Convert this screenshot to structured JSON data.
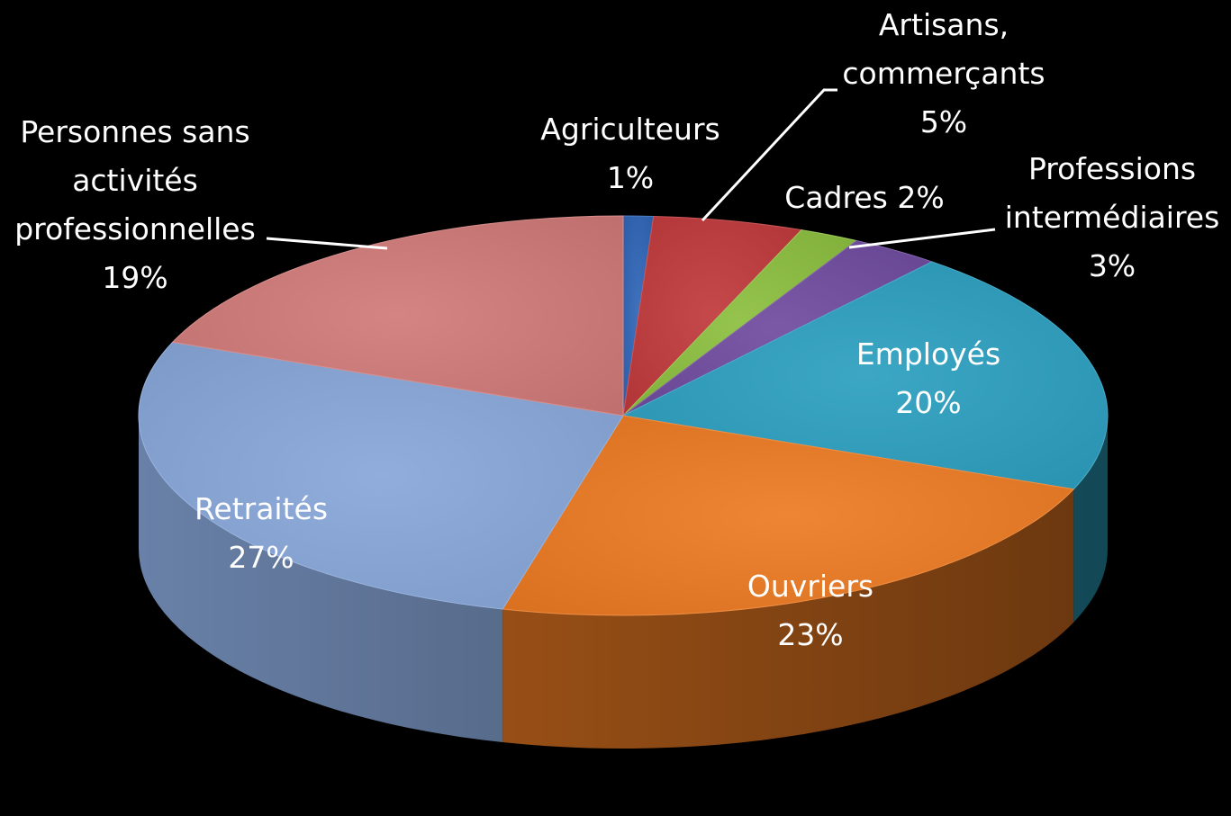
{
  "chart_data": {
    "type": "pie",
    "style": "3d",
    "background": "#000000",
    "legend": "none",
    "start_angle_deg": 0,
    "direction": "clockwise",
    "slices": [
      {
        "name": "Agriculteurs",
        "value": 1,
        "label": "1%",
        "color": "#2f65b7"
      },
      {
        "name": "Artisans, commerçants",
        "name_lines": [
          "Artisans,",
          "commerçants"
        ],
        "value": 5,
        "label": "5%",
        "color": "#c0393b"
      },
      {
        "name": "Cadres",
        "value": 2,
        "label": "2%",
        "color": "#8cbf3f"
      },
      {
        "name": "Professions intermédiaires",
        "name_lines": [
          "Professions",
          "intermédiaires"
        ],
        "value": 3,
        "label": "3%",
        "color": "#6f4b9f"
      },
      {
        "name": "Employés",
        "value": 20,
        "label": "20%",
        "color": "#2b9fbf"
      },
      {
        "name": "Ouvriers",
        "value": 23,
        "label": "23%",
        "color": "#ec7a22"
      },
      {
        "name": "Retraités",
        "value": 27,
        "label": "27%",
        "color": "#87a6d8"
      },
      {
        "name": "Personnes sans activités professionnelles",
        "name_lines": [
          "Personnes sans",
          "activités",
          "professionnelles"
        ],
        "value": 19,
        "label": "19%",
        "color": "#d07a78"
      }
    ]
  }
}
